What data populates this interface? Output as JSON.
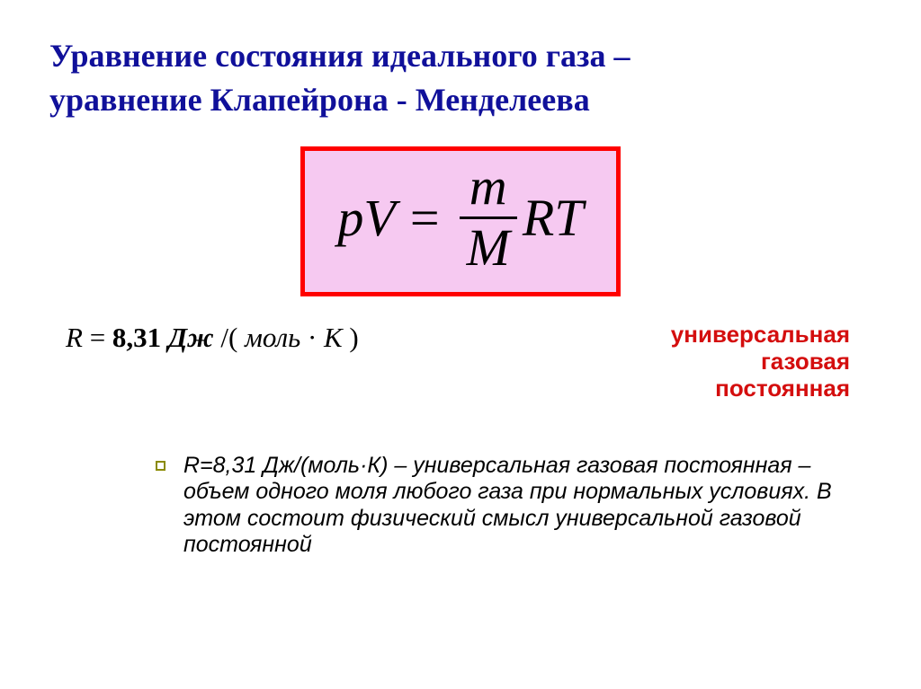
{
  "colors": {
    "title": "#10109a",
    "formula_border": "#ff0000",
    "formula_bg": "#f6c9f1",
    "accent_red": "#d40e0e",
    "bullet_border": "#8a8a00",
    "text": "#000000"
  },
  "title": {
    "line1": "Уравнение состояния идеального газа –",
    "line2": "уравнение Клапейрона - Менделеева"
  },
  "formula": {
    "lhs_p": "p",
    "lhs_V": "V",
    "eq": "=",
    "num": "m",
    "den": "M",
    "rhs_R": "R",
    "rhs_T": "T"
  },
  "rvalue": {
    "R": "R",
    "eq": "=",
    "val": "8,31",
    "unit1": "Дж",
    "slash": "/(",
    "unit2": "моль",
    "dot": "·",
    "unit3": "К",
    "close": ")"
  },
  "label": {
    "l1": "универсальная",
    "l2": "газовая",
    "l3": "постоянная"
  },
  "note": "R=8,31 Дж/(моль·К) – универсальная газовая постоянная – объем одного моля любого газа при нормальных условиях. В этом состоит физический смысл универсальной газовой постоянной"
}
